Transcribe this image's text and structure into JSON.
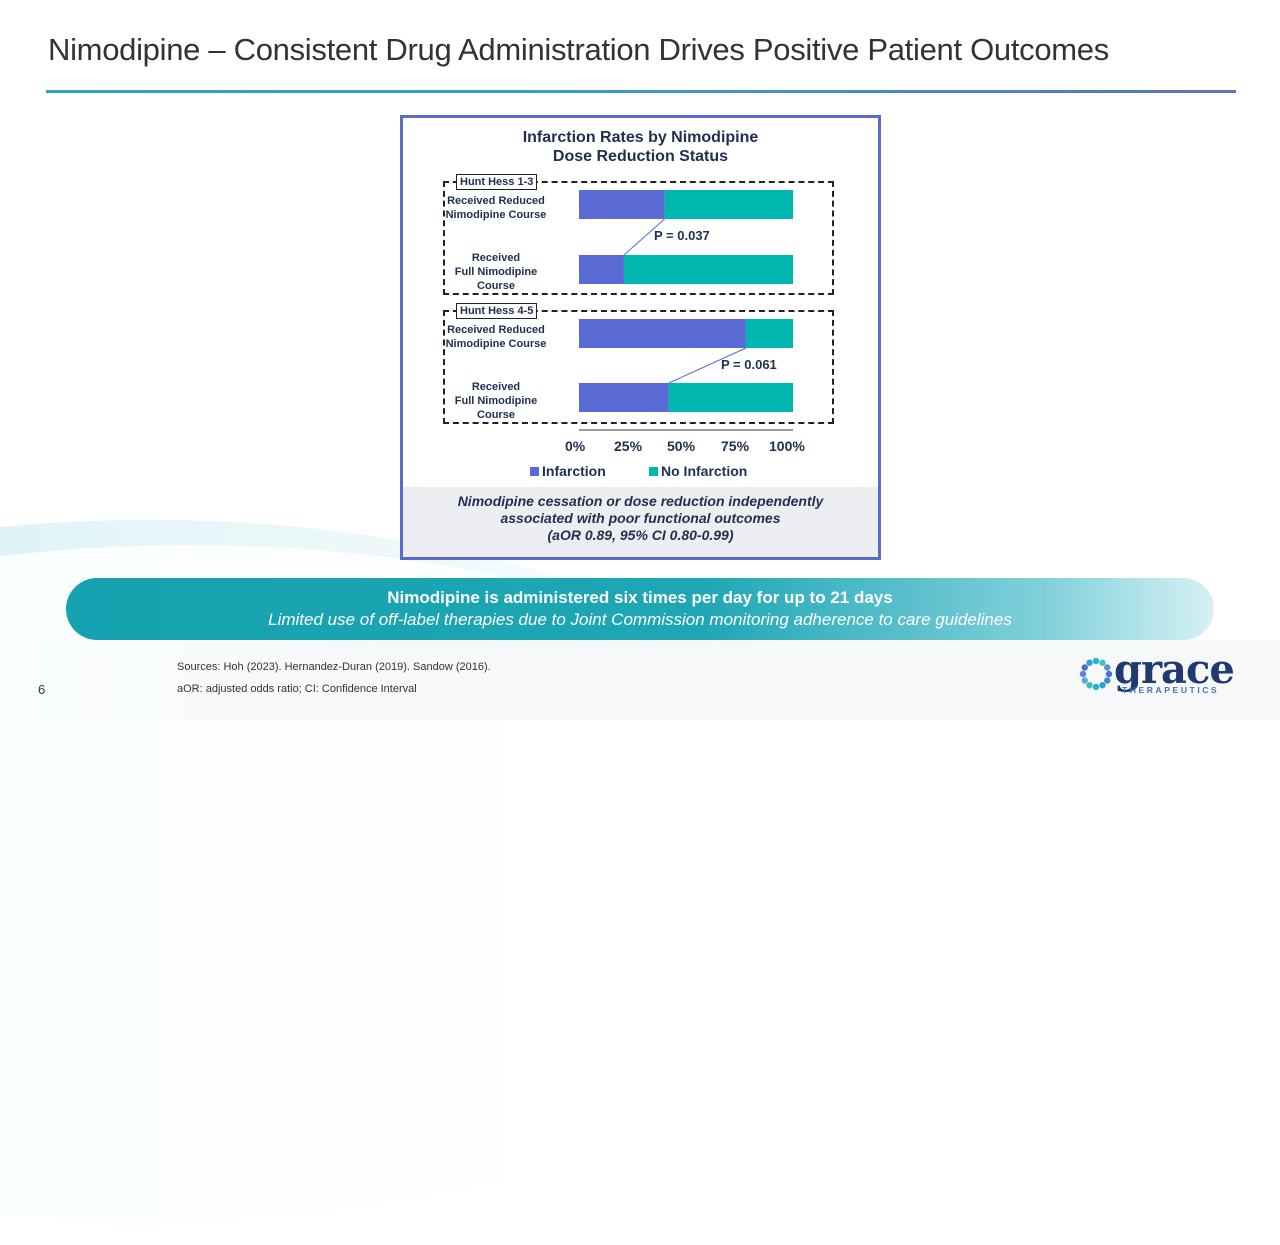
{
  "header": {
    "title": "Nimodipine – Consistent Drug Administration Drives Positive Patient Outcomes"
  },
  "colors": {
    "infarction": "#5a6ad4",
    "no_infarction": "#00b8b0",
    "accent_border": "#5a6cc8",
    "title_text": "#1f2f4f"
  },
  "chart_data": {
    "type": "bar",
    "orientation": "horizontal-stacked-100",
    "title": "Infarction Rates by Nimodipine Dose Reduction Status",
    "title_lines": [
      "Infarction Rates by Nimodipine",
      "Dose Reduction Status"
    ],
    "groups": [
      {
        "label": "Hunt Hess 1-3",
        "p_value": "P = 0.037",
        "categories": [
          {
            "label_lines": [
              "Received Reduced",
              "Nimodipine Course"
            ],
            "infarction": 40,
            "no_infarction": 60
          },
          {
            "label_lines": [
              "Received",
              "Full Nimodipine",
              "Course"
            ],
            "infarction": 21,
            "no_infarction": 79
          }
        ]
      },
      {
        "label": "Hunt Hess 4-5",
        "p_value": "P = 0.061",
        "categories": [
          {
            "label_lines": [
              "Received Reduced",
              "Nimodipine Course"
            ],
            "infarction": 78,
            "no_infarction": 22
          },
          {
            "label_lines": [
              "Received",
              "Full Nimodipine",
              "Course"
            ],
            "infarction": 42,
            "no_infarction": 58
          }
        ]
      }
    ],
    "series": [
      {
        "name": "Infarction"
      },
      {
        "name": "No Infarction"
      }
    ],
    "xlim": [
      0,
      100
    ],
    "x_ticks": [
      "0%",
      "25%",
      "50%",
      "75%",
      "100%"
    ],
    "xlabel": "",
    "ylabel": "",
    "grid": false,
    "legend_position": "bottom"
  },
  "chart_note": {
    "lines": [
      "Nimodipine cessation or dose reduction independently",
      "associated with poor functional outcomes",
      "(aOR 0.89, 95% CI 0.80-0.99)"
    ]
  },
  "callout": {
    "main": "Nimodipine is administered six times per day for up to 21 days",
    "sub": "Limited use of off-label therapies due to Joint Commission monitoring adherence to care guidelines"
  },
  "footer": {
    "page_number": "6",
    "sources": "Sources: Hoh (2023). Hernandez-Duran (2019). Sandow (2016).",
    "abbreviations": "aOR: adjusted odds ratio; CI: Confidence Interval"
  },
  "logo": {
    "word": "grace",
    "tagline": "THERAPEUTICS",
    "icon": "sunburst-dots-icon"
  }
}
